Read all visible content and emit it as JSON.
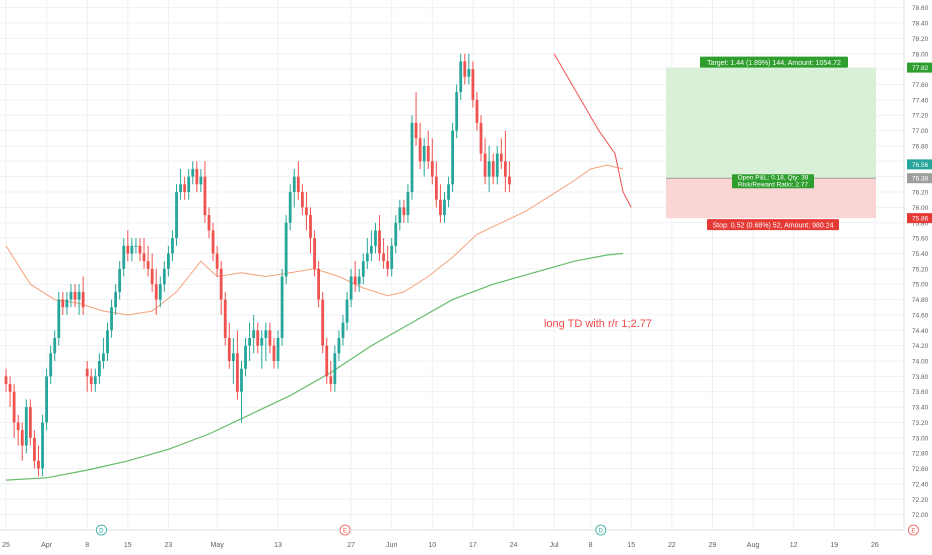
{
  "chart_data": {
    "type": "candlestick",
    "title": "",
    "xlabel": "",
    "ylabel": "",
    "ylim": [
      71.8,
      78.7
    ],
    "y_ticks": [
      "72.00",
      "72.20",
      "72.40",
      "72.60",
      "72.80",
      "73.00",
      "73.20",
      "73.40",
      "73.60",
      "73.80",
      "74.00",
      "74.20",
      "74.40",
      "74.60",
      "74.80",
      "75.00",
      "75.20",
      "75.40",
      "75.60",
      "75.80",
      "76.00",
      "76.20",
      "76.40",
      "76.60",
      "76.80",
      "77.00",
      "77.20",
      "77.40",
      "77.60",
      "77.80",
      "78.00",
      "78.20",
      "78.40",
      "78.60"
    ],
    "y_tick_values": [
      72.0,
      72.2,
      72.4,
      72.6,
      72.8,
      73.0,
      73.2,
      73.4,
      73.6,
      73.8,
      74.0,
      74.2,
      74.4,
      74.6,
      74.8,
      75.0,
      75.2,
      75.4,
      75.6,
      75.8,
      76.0,
      76.2,
      76.4,
      76.6,
      76.8,
      77.0,
      77.2,
      77.4,
      77.6,
      77.8,
      78.0,
      78.2,
      78.4,
      78.6
    ],
    "x_ticks": [
      {
        "label": "25",
        "bar": 0
      },
      {
        "label": "Apr",
        "bar": 10
      },
      {
        "label": "8",
        "bar": 20
      },
      {
        "label": "15",
        "bar": 30
      },
      {
        "label": "23",
        "bar": 40
      },
      {
        "label": "May",
        "bar": 52
      },
      {
        "label": "13",
        "bar": 67
      },
      {
        "label": "27",
        "bar": 85
      },
      {
        "label": "Jun",
        "bar": 95
      },
      {
        "label": "10",
        "bar": 105
      },
      {
        "label": "17",
        "bar": 115
      },
      {
        "label": "24",
        "bar": 125
      },
      {
        "label": "Jul",
        "bar": 135
      },
      {
        "label": "8",
        "bar": 144
      },
      {
        "label": "15",
        "bar": 154
      },
      {
        "label": "22",
        "bar": 164
      },
      {
        "label": "29",
        "bar": 174
      },
      {
        "label": "Aug",
        "bar": 184
      },
      {
        "label": "12",
        "bar": 194
      },
      {
        "label": "19",
        "bar": 204
      },
      {
        "label": "26",
        "bar": 214
      }
    ],
    "candles": [
      [
        73.8,
        73.9,
        73.6,
        73.7
      ],
      [
        73.7,
        73.8,
        73.4,
        73.6
      ],
      [
        73.6,
        73.7,
        73.0,
        73.2
      ],
      [
        73.2,
        73.3,
        72.9,
        73.1
      ],
      [
        73.1,
        73.2,
        72.7,
        72.9
      ],
      [
        72.9,
        73.5,
        72.8,
        73.4
      ],
      [
        73.4,
        73.5,
        72.9,
        73.0
      ],
      [
        73.0,
        73.1,
        72.6,
        72.7
      ],
      [
        72.7,
        72.9,
        72.5,
        72.6
      ],
      [
        72.6,
        73.3,
        72.5,
        73.2
      ],
      [
        73.2,
        73.9,
        73.1,
        73.8
      ],
      [
        73.8,
        74.2,
        73.7,
        74.1
      ],
      [
        74.1,
        74.4,
        74.0,
        74.3
      ],
      [
        74.3,
        74.9,
        74.2,
        74.8
      ],
      [
        74.8,
        74.9,
        74.6,
        74.7
      ],
      [
        74.7,
        74.9,
        74.6,
        74.8
      ],
      [
        74.8,
        75.0,
        74.7,
        74.9
      ],
      [
        74.9,
        75.0,
        74.7,
        74.8
      ],
      [
        74.8,
        75.0,
        74.6,
        74.9
      ],
      [
        74.9,
        75.1,
        74.6,
        74.7
      ],
      [
        73.9,
        74.0,
        73.6,
        73.8
      ],
      [
        73.8,
        73.9,
        73.6,
        73.7
      ],
      [
        73.7,
        73.9,
        73.6,
        73.8
      ],
      [
        73.8,
        74.1,
        73.7,
        74.0
      ],
      [
        74.0,
        74.3,
        73.9,
        74.1
      ],
      [
        74.1,
        74.5,
        74.0,
        74.4
      ],
      [
        74.4,
        74.8,
        74.3,
        74.7
      ],
      [
        74.7,
        75.0,
        74.6,
        74.9
      ],
      [
        74.9,
        75.3,
        74.8,
        75.2
      ],
      [
        75.2,
        75.6,
        75.1,
        75.5
      ],
      [
        75.5,
        75.7,
        75.3,
        75.4
      ],
      [
        75.4,
        75.6,
        75.3,
        75.5
      ],
      [
        75.5,
        75.6,
        75.4,
        75.5
      ],
      [
        75.5,
        75.6,
        75.3,
        75.4
      ],
      [
        75.4,
        75.6,
        75.2,
        75.3
      ],
      [
        75.3,
        75.5,
        75.1,
        75.2
      ],
      [
        75.2,
        75.4,
        74.9,
        75.0
      ],
      [
        75.0,
        75.2,
        74.6,
        74.8
      ],
      [
        74.8,
        75.1,
        74.7,
        75.0
      ],
      [
        75.0,
        75.3,
        74.9,
        75.2
      ],
      [
        75.2,
        75.5,
        75.1,
        75.4
      ],
      [
        75.4,
        75.7,
        75.3,
        75.6
      ],
      [
        75.6,
        76.3,
        75.5,
        76.2
      ],
      [
        76.2,
        76.5,
        76.1,
        76.3
      ],
      [
        76.3,
        76.4,
        76.1,
        76.2
      ],
      [
        76.2,
        76.5,
        76.1,
        76.4
      ],
      [
        76.4,
        76.6,
        76.3,
        76.5
      ],
      [
        76.5,
        76.6,
        76.2,
        76.3
      ],
      [
        76.3,
        76.5,
        76.2,
        76.4
      ],
      [
        76.4,
        76.6,
        75.8,
        75.9
      ],
      [
        75.9,
        76.0,
        75.6,
        75.7
      ],
      [
        75.7,
        75.8,
        75.3,
        75.4
      ],
      [
        75.4,
        75.5,
        75.1,
        75.2
      ],
      [
        75.2,
        75.3,
        74.6,
        74.8
      ],
      [
        74.8,
        74.9,
        74.2,
        74.3
      ],
      [
        74.3,
        74.5,
        73.9,
        74.0
      ],
      [
        74.0,
        74.3,
        73.7,
        74.1
      ],
      [
        74.1,
        74.4,
        73.5,
        73.6
      ],
      [
        73.6,
        74.0,
        73.2,
        73.9
      ],
      [
        73.9,
        74.3,
        73.8,
        74.2
      ],
      [
        74.2,
        74.5,
        74.0,
        74.3
      ],
      [
        74.3,
        74.6,
        74.1,
        74.4
      ],
      [
        74.4,
        74.5,
        74.1,
        74.2
      ],
      [
        74.2,
        74.4,
        73.9,
        74.3
      ],
      [
        74.3,
        74.5,
        74.0,
        74.4
      ],
      [
        74.4,
        74.5,
        74.1,
        74.2
      ],
      [
        74.2,
        74.3,
        73.9,
        74.0
      ],
      [
        74.0,
        74.4,
        73.9,
        74.3
      ],
      [
        74.3,
        75.2,
        74.2,
        75.1
      ],
      [
        75.1,
        75.9,
        75.0,
        75.8
      ],
      [
        75.8,
        76.3,
        75.7,
        76.2
      ],
      [
        76.2,
        76.5,
        76.0,
        76.4
      ],
      [
        76.4,
        76.6,
        76.1,
        76.2
      ],
      [
        76.2,
        76.3,
        75.9,
        76.0
      ],
      [
        76.0,
        76.2,
        75.7,
        75.9
      ],
      [
        75.9,
        76.0,
        75.4,
        75.6
      ],
      [
        75.6,
        75.7,
        75.1,
        75.2
      ],
      [
        75.2,
        75.3,
        74.7,
        74.8
      ],
      [
        74.8,
        74.9,
        74.1,
        74.2
      ],
      [
        74.2,
        74.3,
        73.7,
        73.8
      ],
      [
        73.8,
        74.0,
        73.6,
        73.7
      ],
      [
        73.7,
        74.2,
        73.6,
        74.1
      ],
      [
        74.1,
        74.4,
        74.0,
        74.3
      ],
      [
        74.3,
        74.6,
        74.2,
        74.5
      ],
      [
        74.5,
        74.9,
        74.4,
        74.8
      ],
      [
        74.8,
        75.2,
        74.7,
        75.1
      ],
      [
        75.1,
        75.3,
        74.9,
        75.0
      ],
      [
        75.0,
        75.2,
        74.9,
        75.1
      ],
      [
        75.1,
        75.4,
        75.0,
        75.3
      ],
      [
        75.3,
        75.6,
        75.2,
        75.4
      ],
      [
        75.4,
        75.7,
        75.3,
        75.5
      ],
      [
        75.5,
        75.8,
        75.4,
        75.7
      ],
      [
        75.7,
        75.9,
        75.3,
        75.4
      ],
      [
        75.4,
        75.6,
        75.2,
        75.3
      ],
      [
        75.3,
        75.5,
        75.1,
        75.2
      ],
      [
        75.2,
        75.6,
        75.1,
        75.5
      ],
      [
        75.5,
        75.9,
        75.4,
        75.8
      ],
      [
        75.8,
        76.1,
        75.7,
        76.0
      ],
      [
        76.0,
        76.1,
        75.8,
        75.9
      ],
      [
        75.9,
        76.3,
        75.8,
        76.2
      ],
      [
        76.2,
        77.2,
        76.1,
        77.1
      ],
      [
        77.1,
        77.5,
        76.8,
        76.9
      ],
      [
        76.9,
        77.1,
        76.5,
        76.6
      ],
      [
        76.6,
        76.9,
        76.4,
        76.8
      ],
      [
        76.8,
        77.0,
        76.5,
        76.6
      ],
      [
        76.6,
        76.9,
        76.3,
        76.4
      ],
      [
        76.4,
        76.6,
        76.0,
        76.1
      ],
      [
        76.1,
        76.3,
        75.8,
        75.9
      ],
      [
        75.9,
        76.2,
        75.8,
        76.1
      ],
      [
        76.1,
        76.4,
        76.0,
        76.3
      ],
      [
        76.3,
        77.1,
        76.2,
        77.0
      ],
      [
        77.0,
        77.6,
        76.9,
        77.5
      ],
      [
        77.5,
        78.0,
        77.4,
        77.9
      ],
      [
        77.9,
        78.0,
        77.6,
        77.7
      ],
      [
        77.7,
        78.0,
        77.6,
        77.8
      ],
      [
        77.8,
        77.9,
        77.3,
        77.4
      ],
      [
        77.4,
        77.5,
        77.0,
        77.1
      ],
      [
        77.1,
        77.2,
        76.6,
        76.7
      ],
      [
        76.7,
        76.9,
        76.3,
        76.4
      ],
      [
        76.4,
        76.8,
        76.2,
        76.6
      ],
      [
        76.6,
        76.7,
        76.3,
        76.4
      ],
      [
        76.4,
        76.8,
        76.3,
        76.7
      ],
      [
        76.7,
        76.9,
        76.5,
        76.6
      ],
      [
        76.6,
        77.0,
        76.2,
        76.4
      ],
      [
        76.4,
        76.6,
        76.2,
        76.3
      ]
    ],
    "series": [
      {
        "values": [
          [
            0,
            75.5
          ],
          [
            6,
            75.0
          ],
          [
            12,
            74.8
          ],
          [
            18,
            74.75
          ],
          [
            24,
            74.65
          ],
          [
            30,
            74.6
          ],
          [
            36,
            74.65
          ],
          [
            42,
            74.9
          ],
          [
            48,
            75.3
          ],
          [
            52,
            75.1
          ],
          [
            58,
            75.15
          ],
          [
            64,
            75.1
          ],
          [
            70,
            75.15
          ],
          [
            76,
            75.2
          ],
          [
            82,
            75.1
          ],
          [
            88,
            74.95
          ],
          [
            94,
            74.85
          ],
          [
            98,
            74.9
          ],
          [
            104,
            75.1
          ],
          [
            110,
            75.35
          ],
          [
            116,
            75.65
          ],
          [
            122,
            75.8
          ],
          [
            128,
            75.95
          ],
          [
            134,
            76.15
          ],
          [
            140,
            76.35
          ],
          [
            144,
            76.5
          ],
          [
            148,
            76.55
          ],
          [
            152,
            76.5
          ]
        ]
      },
      {
        "values": [
          [
            0,
            72.45
          ],
          [
            10,
            72.48
          ],
          [
            20,
            72.58
          ],
          [
            30,
            72.7
          ],
          [
            40,
            72.85
          ],
          [
            50,
            73.05
          ],
          [
            60,
            73.3
          ],
          [
            70,
            73.55
          ],
          [
            80,
            73.85
          ],
          [
            90,
            74.2
          ],
          [
            100,
            74.5
          ],
          [
            110,
            74.8
          ],
          [
            120,
            75.0
          ],
          [
            130,
            75.15
          ],
          [
            140,
            75.3
          ],
          [
            148,
            75.38
          ],
          [
            152,
            75.4
          ]
        ]
      }
    ],
    "trend_line": [
      [
        135,
        78.0
      ],
      [
        146,
        77.0
      ],
      [
        150,
        76.7
      ],
      [
        152,
        76.2
      ],
      [
        154,
        76.0
      ]
    ],
    "position": {
      "target": 77.82,
      "entry": 76.38,
      "stop": 75.86,
      "current": 76.56,
      "target_label": "Target: 1.44 (1.89%) 144, Amount: 1054.72",
      "stop_label": "Stop: 0.52 (0.68%) 52, Amount: 980.24",
      "pnl_label": "Open P&L: 0.18, Qty: 38",
      "rr_label": "Risk/Reward Ratio: 2.77",
      "target_price_label": "77.82",
      "current_price_label": "76.56",
      "entry_price_label": "76.38",
      "stop_price_label": "75.86"
    },
    "annotation": "long TD with r/r 1;2.77",
    "event_markers": [
      {
        "label": "D",
        "bar": 24
      },
      {
        "label": "E",
        "bar": 84
      },
      {
        "label": "D",
        "bar": 147
      },
      {
        "label": "E",
        "bar": 224
      }
    ],
    "grid": true,
    "up_color": "#26a69a",
    "down_color": "#ef5350",
    "ma_fast_color": "#f4a37a",
    "ma_slow_color": "#66bb6a",
    "target_zone_color": "#d7f0d7",
    "stop_zone_color": "#fbd4d4"
  }
}
